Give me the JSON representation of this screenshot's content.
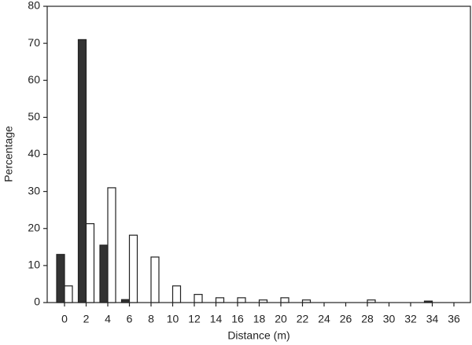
{
  "chart_data": {
    "type": "bar",
    "xlabel": "Distance (m)",
    "ylabel": "Percentage",
    "categories": [
      "0",
      "2",
      "4",
      "6",
      "8",
      "10",
      "12",
      "14",
      "16",
      "18",
      "20",
      "22",
      "24",
      "26",
      "28",
      "30",
      "32",
      "34",
      "36"
    ],
    "series": [
      {
        "color": "#333333",
        "values": [
          13,
          71,
          15.5,
          0.8,
          0,
          0,
          0,
          0,
          0,
          0,
          0,
          0,
          0,
          0,
          0,
          0,
          0,
          0.4,
          0
        ]
      },
      {
        "color": "#ffffff",
        "values": [
          4.5,
          21.3,
          31,
          18.2,
          12.3,
          4.5,
          2.2,
          1.3,
          1.3,
          0.7,
          1.3,
          0.7,
          0,
          0,
          0.7,
          0,
          0,
          0,
          0
        ]
      }
    ],
    "ylim": [
      0,
      80
    ],
    "yticks": [
      0,
      10,
      20,
      30,
      40,
      50,
      60,
      70,
      80
    ]
  }
}
